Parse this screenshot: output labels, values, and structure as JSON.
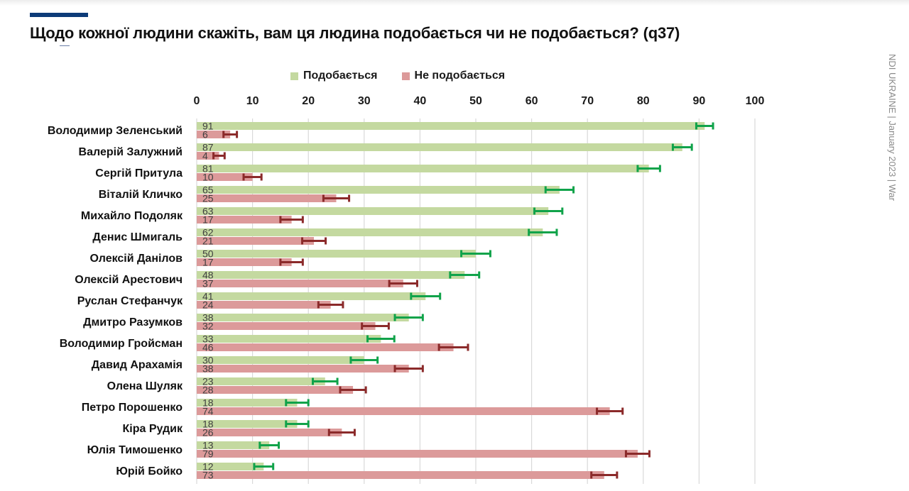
{
  "header": {
    "title": "Щодо кожної людини скажіть, вам ця людина подобається чи не подобається? (q37)",
    "side_caption": "NDI UKRAINE | January 2023 | War",
    "accent_color": "#0d3b78"
  },
  "chart_data": {
    "type": "bar",
    "orientation": "horizontal",
    "title": "Щодо кожної людини скажіть, вам ця людина подобається чи не подобається? (q37)",
    "xlabel": "",
    "ylabel": "",
    "xlim": [
      0,
      100
    ],
    "x_ticks": [
      "0",
      "10",
      "20",
      "30",
      "40",
      "50",
      "60",
      "70",
      "80",
      "90",
      "100"
    ],
    "x_tick_values": [
      0,
      10,
      20,
      30,
      40,
      50,
      60,
      70,
      80,
      90,
      100
    ],
    "grid": "vertical",
    "legend_position": "top",
    "categories": [
      "Володимир Зеленський",
      "Валерій Залужний",
      "Сергій Притула",
      "Віталій Кличко",
      "Михайло Подоляк",
      "Денис Шмигаль",
      "Олексій Данілов",
      "Олексій Арестович",
      "Руслан Стефанчук",
      "Дмитро Разумков",
      "Володимир Гройсман",
      "Давид Арахамія",
      "Олена Шуляк",
      "Петро Порошенко",
      "Кіра Рудик",
      "Юлія Тимошенко",
      "Юрій Бойко"
    ],
    "series": [
      {
        "name": "Подобається",
        "color": "#c4d9a0",
        "error_color": "#10a34a",
        "values": [
          91,
          87,
          81,
          65,
          63,
          62,
          50,
          48,
          41,
          38,
          33,
          30,
          23,
          18,
          18,
          13,
          12
        ],
        "error_margin": [
          1.5,
          1.7,
          2.0,
          2.5,
          2.5,
          2.5,
          2.6,
          2.6,
          2.6,
          2.5,
          2.4,
          2.4,
          2.2,
          2.0,
          2.0,
          1.7,
          1.7
        ]
      },
      {
        "name": "Не подобається",
        "color": "#dc9a9a",
        "error_color": "#8b2a2a",
        "values": [
          6,
          4,
          10,
          25,
          17,
          21,
          17,
          37,
          24,
          32,
          46,
          38,
          28,
          74,
          26,
          79,
          73
        ],
        "error_margin": [
          1.2,
          1.0,
          1.6,
          2.3,
          2.0,
          2.1,
          2.0,
          2.5,
          2.2,
          2.4,
          2.6,
          2.5,
          2.3,
          2.3,
          2.3,
          2.1,
          2.3
        ]
      }
    ]
  }
}
